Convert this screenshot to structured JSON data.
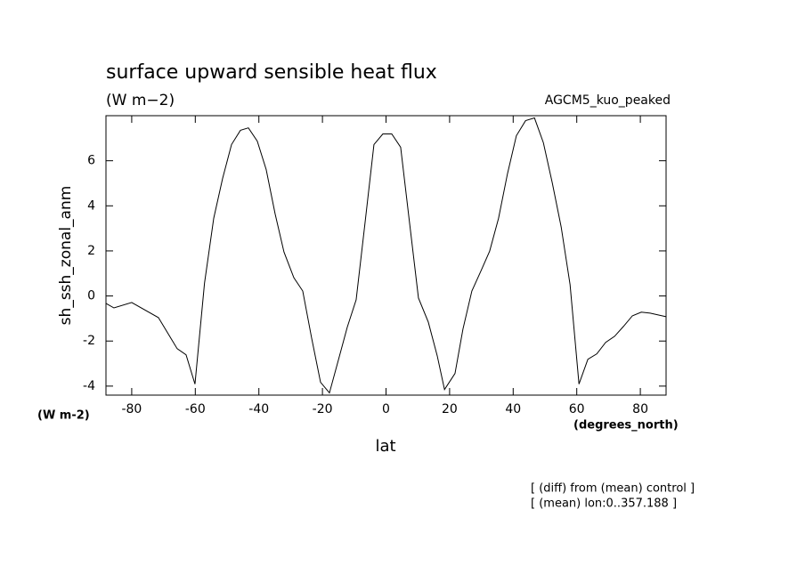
{
  "chart_data": {
    "type": "line",
    "title": "surface upward sensible heat flux",
    "subtitle": "(W m−2)",
    "annotation_right": "AGCM5_kuo_peaked",
    "y_label": "sh_ssh_zonal_anm",
    "y_units": "(W m-2)",
    "x_units": "(degrees_north)",
    "x_label": "lat",
    "notes": [
      "[ (diff) from (mean) control ]",
      "[ (mean) lon:0..357.188 ]"
    ],
    "x": [
      -88.1,
      -85.6,
      -80.0,
      -71.6,
      -65.7,
      -62.9,
      -60.1,
      -57.1,
      -54.2,
      -51.4,
      -48.6,
      -45.8,
      -43.3,
      -40.5,
      -37.7,
      -34.9,
      -32.1,
      -29.0,
      -26.2,
      -23.4,
      -20.6,
      -17.8,
      -15.0,
      -12.2,
      -9.4,
      -6.6,
      -3.8,
      -1.0,
      1.8,
      4.6,
      7.4,
      10.2,
      13.3,
      16.1,
      18.4,
      21.7,
      24.2,
      27.0,
      29.8,
      32.6,
      35.4,
      38.2,
      41.0,
      43.9,
      46.7,
      49.5,
      52.3,
      55.1,
      57.9,
      60.7,
      63.5,
      66.3,
      69.1,
      71.9,
      74.7,
      77.5,
      80.3,
      83.1,
      88.1
    ],
    "series": [
      {
        "name": "sh_ssh_zonal_anm",
        "color": "#000000",
        "values": [
          -0.33,
          -0.53,
          -0.29,
          -0.96,
          -2.34,
          -2.61,
          -3.91,
          0.57,
          3.45,
          5.22,
          6.72,
          7.35,
          7.46,
          6.87,
          5.61,
          3.65,
          1.95,
          0.81,
          0.22,
          -1.87,
          -3.83,
          -4.3,
          -2.85,
          -1.39,
          -0.17,
          3.25,
          6.72,
          7.19,
          7.19,
          6.6,
          3.25,
          -0.09,
          -1.16,
          -2.65,
          -4.15,
          -3.44,
          -1.47,
          0.22,
          1.09,
          1.99,
          3.45,
          5.42,
          7.11,
          7.78,
          7.9,
          6.8,
          5.02,
          3.06,
          0.5,
          -3.91,
          -2.81,
          -2.57,
          -2.06,
          -1.79,
          -1.35,
          -0.88,
          -0.72,
          -0.76,
          -0.92
        ]
      }
    ],
    "xlim": [
      -88.1,
      88.1
    ],
    "ylim": [
      -4.4,
      8
    ],
    "xticks": [
      -80,
      -60,
      -40,
      -20,
      0,
      20,
      40,
      60,
      80
    ],
    "yticks": [
      -4,
      -2,
      0,
      2,
      4,
      6
    ],
    "grid": false
  }
}
